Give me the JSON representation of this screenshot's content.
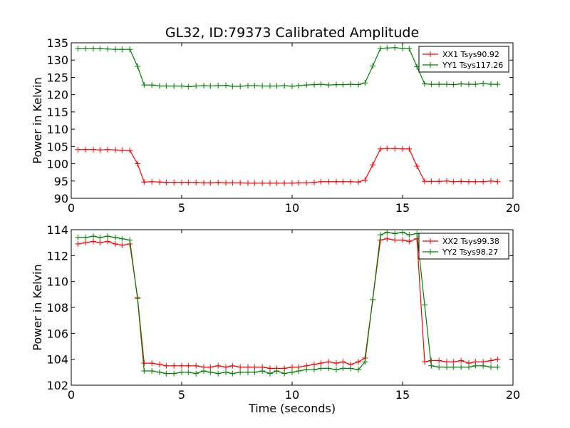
{
  "figure": {
    "title": "GL32, ID:79373 Calibrated Amplitude"
  },
  "chart_data": [
    {
      "type": "line",
      "title": "GL32, ID:79373 Calibrated Amplitude",
      "xlabel": "",
      "ylabel": "Power in Kelvin",
      "xlim": [
        0,
        20
      ],
      "ylim": [
        90,
        135
      ],
      "xticks": [
        0,
        5,
        10,
        15,
        20
      ],
      "yticks": [
        90,
        95,
        100,
        105,
        110,
        115,
        120,
        125,
        130,
        135
      ],
      "grid": false,
      "legend_position": "top-right",
      "x": [
        0.3,
        0.65,
        1.0,
        1.3,
        1.65,
        2.0,
        2.3,
        2.65,
        3.0,
        3.3,
        3.65,
        4.0,
        4.3,
        4.65,
        5.0,
        5.3,
        5.65,
        6.0,
        6.3,
        6.65,
        7.0,
        7.3,
        7.65,
        8.0,
        8.3,
        8.65,
        9.0,
        9.3,
        9.65,
        10.0,
        10.3,
        10.65,
        11.0,
        11.3,
        11.65,
        12.0,
        12.3,
        12.65,
        13.0,
        13.3,
        13.65,
        14.0,
        14.3,
        14.65,
        15.0,
        15.3,
        15.65,
        16.0,
        16.3,
        16.65,
        17.0,
        17.3,
        17.65,
        18.0,
        18.3,
        18.65,
        19.0,
        19.3
      ],
      "series": [
        {
          "name": "XX1 Tsys90.92",
          "color": "#ff0000",
          "values": [
            104.1,
            104.1,
            104.1,
            104.0,
            104.1,
            104.0,
            103.9,
            103.9,
            100.0,
            94.7,
            94.8,
            94.7,
            94.6,
            94.6,
            94.6,
            94.6,
            94.6,
            94.5,
            94.5,
            94.6,
            94.5,
            94.5,
            94.5,
            94.4,
            94.4,
            94.4,
            94.4,
            94.4,
            94.4,
            94.4,
            94.5,
            94.5,
            94.6,
            94.8,
            94.8,
            94.8,
            94.8,
            94.8,
            94.7,
            95.3,
            99.7,
            104.3,
            104.4,
            104.4,
            104.3,
            104.3,
            99.3,
            94.9,
            94.9,
            94.9,
            95.0,
            94.8,
            94.9,
            94.8,
            94.8,
            94.8,
            95.0,
            94.8
          ]
        },
        {
          "name": "YY1 Tsys117.26",
          "color": "#008000",
          "values": [
            133.3,
            133.3,
            133.3,
            133.3,
            133.2,
            133.1,
            133.1,
            133.1,
            128.2,
            122.8,
            122.8,
            122.5,
            122.5,
            122.5,
            122.5,
            122.3,
            122.5,
            122.6,
            122.5,
            122.6,
            122.7,
            122.4,
            122.4,
            122.6,
            122.6,
            122.5,
            122.5,
            122.5,
            122.6,
            122.4,
            122.6,
            122.8,
            122.9,
            123.0,
            122.8,
            122.9,
            122.9,
            123.0,
            122.9,
            123.4,
            128.3,
            133.4,
            133.5,
            133.6,
            133.4,
            133.3,
            128.1,
            123.1,
            123.0,
            123.0,
            123.0,
            122.9,
            123.1,
            123.0,
            123.0,
            123.2,
            123.0,
            123.0
          ]
        }
      ]
    },
    {
      "type": "line",
      "title": "",
      "xlabel": "Time (seconds)",
      "ylabel": "Power in Kelvin",
      "xlim": [
        0,
        20
      ],
      "ylim": [
        102,
        114
      ],
      "xticks": [
        0,
        5,
        10,
        15,
        20
      ],
      "yticks": [
        102,
        104,
        106,
        108,
        110,
        112,
        114
      ],
      "grid": false,
      "legend_position": "top-right",
      "x": [
        0.3,
        0.65,
        1.0,
        1.3,
        1.65,
        2.0,
        2.3,
        2.65,
        3.0,
        3.3,
        3.65,
        4.0,
        4.3,
        4.65,
        5.0,
        5.3,
        5.65,
        6.0,
        6.3,
        6.65,
        7.0,
        7.3,
        7.65,
        8.0,
        8.3,
        8.65,
        9.0,
        9.3,
        9.65,
        10.0,
        10.3,
        10.65,
        11.0,
        11.3,
        11.65,
        12.0,
        12.3,
        12.65,
        13.0,
        13.3,
        13.65,
        14.0,
        14.3,
        14.65,
        15.0,
        15.3,
        15.65,
        16.0,
        16.3,
        16.65,
        17.0,
        17.3,
        17.65,
        18.0,
        18.3,
        18.65,
        19.0,
        19.3
      ],
      "series": [
        {
          "name": "XX2 Tsys99.38",
          "color": "#ff0000",
          "values": [
            112.9,
            113.0,
            113.1,
            113.0,
            113.1,
            112.9,
            112.8,
            112.9,
            108.8,
            103.7,
            103.7,
            103.6,
            103.5,
            103.5,
            103.5,
            103.5,
            103.5,
            103.4,
            103.4,
            103.5,
            103.4,
            103.5,
            103.4,
            103.4,
            103.4,
            103.4,
            103.3,
            103.3,
            103.3,
            103.4,
            103.4,
            103.5,
            103.6,
            103.7,
            103.8,
            103.7,
            103.8,
            103.6,
            103.8,
            104.1,
            108.6,
            113.2,
            113.3,
            113.2,
            113.2,
            113.1,
            113.3,
            103.8,
            103.9,
            103.9,
            103.8,
            103.8,
            103.9,
            103.7,
            103.8,
            103.8,
            103.9,
            104.0
          ]
        },
        {
          "name": "YY2 Tsys98.27",
          "color": "#008000",
          "values": [
            113.4,
            113.4,
            113.5,
            113.4,
            113.5,
            113.4,
            113.3,
            113.2,
            108.7,
            103.1,
            103.1,
            103.0,
            102.9,
            102.9,
            103.0,
            103.0,
            102.9,
            103.1,
            103.0,
            102.9,
            103.0,
            102.9,
            103.0,
            103.0,
            103.0,
            103.1,
            102.9,
            103.1,
            102.9,
            103.0,
            103.1,
            103.2,
            103.2,
            103.3,
            103.3,
            103.2,
            103.3,
            103.3,
            103.2,
            103.8,
            108.6,
            113.6,
            113.8,
            113.7,
            113.8,
            113.6,
            113.7,
            108.2,
            103.5,
            103.4,
            103.4,
            103.4,
            103.4,
            103.4,
            103.5,
            103.5,
            103.4,
            103.4
          ]
        }
      ]
    }
  ]
}
